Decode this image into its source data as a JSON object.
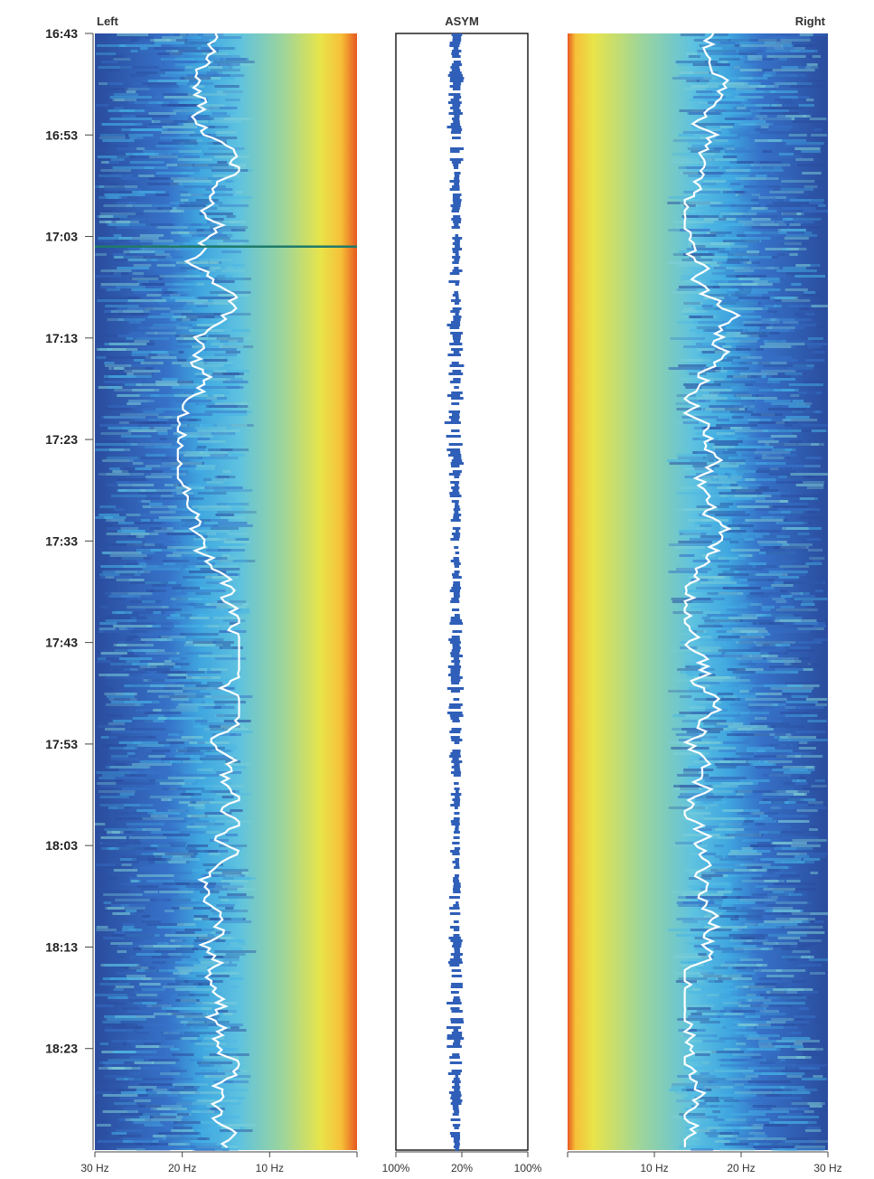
{
  "chart_data": {
    "type": "heatmap",
    "panels": [
      {
        "id": "left",
        "title": "Left",
        "x_axis": {
          "range_hz": [
            30,
            0
          ],
          "reversed": true,
          "tick_labels": [
            "30 Hz",
            "20 Hz",
            "10 Hz"
          ],
          "tick_values": [
            30,
            20,
            10
          ]
        },
        "colormap": [
          "#2b4aa0",
          "#3a78d0",
          "#46b3e6",
          "#8fd3a8",
          "#e6e84a",
          "#f7c43a",
          "#e8541e"
        ],
        "white_trace_hz_range": [
          15,
          19
        ]
      },
      {
        "id": "asym",
        "title": "ASYM",
        "x_axis": {
          "tick_labels": [
            "100%",
            "20%",
            "100%"
          ]
        },
        "bar_color": "#2f5fb8"
      },
      {
        "id": "right",
        "title": "Right",
        "x_axis": {
          "range_hz": [
            0,
            30
          ],
          "reversed": false,
          "tick_labels": [
            "10 Hz",
            "20 Hz",
            "30 Hz"
          ],
          "tick_values": [
            10,
            20,
            30
          ]
        },
        "colormap": [
          "#2b4aa0",
          "#3a78d0",
          "#46b3e6",
          "#8fd3a8",
          "#e6e84a",
          "#f7c43a",
          "#e8541e"
        ],
        "white_trace_hz_range": [
          15,
          20
        ]
      }
    ],
    "y_axis": {
      "time_labels": [
        "16:43",
        "16:53",
        "17:03",
        "17:13",
        "17:23",
        "17:33",
        "17:43",
        "17:53",
        "18:03",
        "18:13",
        "18:23"
      ],
      "start": "16:43",
      "end": "18:33",
      "step_minutes": 10
    },
    "events": [
      {
        "time": "17:04",
        "panel": "left",
        "kind": "horizontal-line",
        "color": "#1f7a6a"
      }
    ]
  }
}
